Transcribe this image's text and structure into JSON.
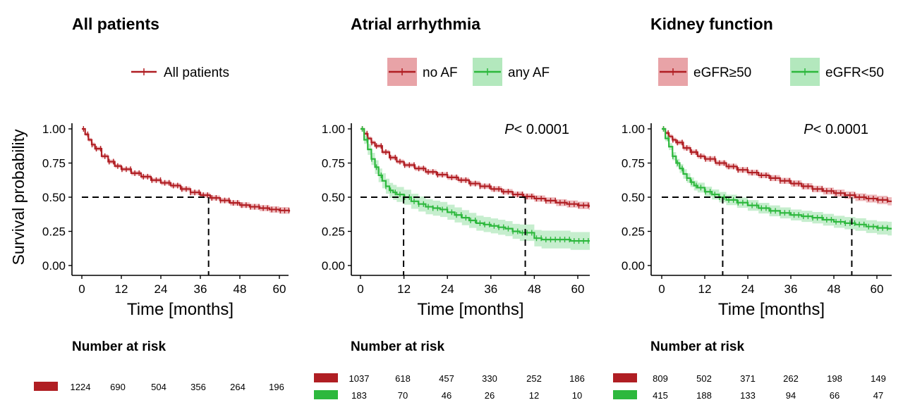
{
  "chart_data": [
    {
      "type": "line",
      "subtype": "kaplan-meier",
      "title": "All patients",
      "xlabel": "Time [months]",
      "ylabel": "Survival probability",
      "xlim": [
        0,
        63
      ],
      "ylim": [
        0,
        1
      ],
      "x_ticks": [
        "0",
        "12",
        "24",
        "36",
        "48",
        "60"
      ],
      "y_ticks": [
        "0.00",
        "0.25",
        "0.50",
        "0.75",
        "1.00"
      ],
      "p_value": null,
      "series": [
        {
          "name": "All patients",
          "color": "#b01e23",
          "fill": "#e8a3a7",
          "x": [
            0,
            1,
            2,
            3,
            4,
            6,
            8,
            10,
            12,
            15,
            18,
            21,
            24,
            27,
            30,
            33,
            36,
            39,
            42,
            45,
            48,
            51,
            54,
            57,
            60,
            63
          ],
          "y": [
            1.0,
            0.96,
            0.92,
            0.885,
            0.855,
            0.8,
            0.76,
            0.728,
            0.705,
            0.676,
            0.65,
            0.625,
            0.605,
            0.585,
            0.56,
            0.535,
            0.515,
            0.495,
            0.476,
            0.458,
            0.442,
            0.43,
            0.42,
            0.41,
            0.403,
            0.4
          ],
          "ci_width": [
            0,
            0.012,
            0.014,
            0.015,
            0.015,
            0.015,
            0.015,
            0.015,
            0.015,
            0.016,
            0.016,
            0.016,
            0.017,
            0.017,
            0.017,
            0.018,
            0.018,
            0.018,
            0.019,
            0.019,
            0.02,
            0.021,
            0.022,
            0.023,
            0.024,
            0.025
          ],
          "median": 38.5
        }
      ],
      "risk_table": {
        "title": "Number at risk",
        "rows": [
          {
            "name": "All patients",
            "color": "#b01e23",
            "values": [
              "1224",
              "690",
              "504",
              "356",
              "264",
              "196"
            ]
          }
        ]
      }
    },
    {
      "type": "line",
      "subtype": "kaplan-meier",
      "title": "Atrial arrhythmia",
      "xlabel": "Time [months]",
      "ylabel": "",
      "xlim": [
        0,
        63
      ],
      "ylim": [
        0,
        1
      ],
      "x_ticks": [
        "0",
        "12",
        "24",
        "36",
        "48",
        "60"
      ],
      "y_ticks": [
        "0.00",
        "0.25",
        "0.50",
        "0.75",
        "1.00"
      ],
      "p_value": {
        "label": "P",
        "text": "< 0.0001"
      },
      "series": [
        {
          "name": "no AF",
          "color": "#b01e23",
          "fill": "#e8a3a7",
          "x": [
            0,
            1,
            2,
            3,
            4,
            6,
            8,
            10,
            12,
            15,
            18,
            21,
            24,
            27,
            30,
            33,
            36,
            39,
            42,
            45,
            48,
            51,
            54,
            57,
            60,
            63
          ],
          "y": [
            1.0,
            0.965,
            0.93,
            0.9,
            0.875,
            0.83,
            0.79,
            0.76,
            0.735,
            0.71,
            0.685,
            0.665,
            0.645,
            0.625,
            0.6,
            0.58,
            0.56,
            0.54,
            0.52,
            0.505,
            0.49,
            0.475,
            0.46,
            0.45,
            0.44,
            0.435
          ],
          "ci_width": [
            0,
            0.012,
            0.014,
            0.015,
            0.015,
            0.016,
            0.016,
            0.016,
            0.016,
            0.017,
            0.017,
            0.018,
            0.018,
            0.018,
            0.019,
            0.019,
            0.02,
            0.02,
            0.021,
            0.022,
            0.023,
            0.024,
            0.025,
            0.026,
            0.027,
            0.028
          ],
          "median": 45.5
        },
        {
          "name": "any AF",
          "color": "#2db83d",
          "fill": "#b3e8bd",
          "x": [
            0,
            1,
            2,
            3,
            4,
            5,
            6,
            7,
            8,
            9,
            10,
            12,
            14,
            16,
            18,
            20,
            22,
            24,
            26,
            28,
            30,
            32,
            34,
            36,
            38,
            40,
            42,
            44,
            46,
            48,
            50,
            54,
            58,
            63
          ],
          "y": [
            1.0,
            0.92,
            0.85,
            0.78,
            0.72,
            0.66,
            0.62,
            0.58,
            0.55,
            0.535,
            0.52,
            0.5,
            0.47,
            0.45,
            0.43,
            0.42,
            0.41,
            0.39,
            0.37,
            0.35,
            0.33,
            0.31,
            0.3,
            0.29,
            0.28,
            0.27,
            0.25,
            0.24,
            0.24,
            0.2,
            0.19,
            0.19,
            0.18,
            0.18
          ],
          "ci_width": [
            0,
            0.03,
            0.04,
            0.045,
            0.05,
            0.05,
            0.055,
            0.055,
            0.055,
            0.055,
            0.055,
            0.055,
            0.055,
            0.055,
            0.055,
            0.055,
            0.055,
            0.055,
            0.055,
            0.055,
            0.055,
            0.055,
            0.055,
            0.055,
            0.055,
            0.055,
            0.055,
            0.06,
            0.06,
            0.06,
            0.065,
            0.065,
            0.065,
            0.065
          ],
          "median": 11.9
        }
      ],
      "risk_table": {
        "title": "Number at risk",
        "rows": [
          {
            "name": "no AF",
            "color": "#b01e23",
            "values": [
              "1037",
              "618",
              "457",
              "330",
              "252",
              "186"
            ]
          },
          {
            "name": "any AF",
            "color": "#2db83d",
            "values": [
              "183",
              "70",
              "46",
              "26",
              "12",
              "10"
            ]
          }
        ]
      }
    },
    {
      "type": "line",
      "subtype": "kaplan-meier",
      "title": "Kidney function",
      "xlabel": "Time [months]",
      "ylabel": "",
      "xlim": [
        0,
        63
      ],
      "ylim": [
        0,
        1
      ],
      "x_ticks": [
        "0",
        "12",
        "24",
        "36",
        "48",
        "60"
      ],
      "y_ticks": [
        "0.00",
        "0.25",
        "0.50",
        "0.75",
        "1.00"
      ],
      "p_value": {
        "label": "P",
        "text": "< 0.0001"
      },
      "series": [
        {
          "name": "eGFR≥50",
          "color": "#b01e23",
          "fill": "#e8a3a7",
          "x": [
            0,
            1,
            2,
            3,
            4,
            6,
            8,
            10,
            12,
            15,
            18,
            21,
            24,
            27,
            30,
            33,
            36,
            39,
            42,
            45,
            48,
            51,
            54,
            57,
            60,
            63
          ],
          "y": [
            1.0,
            0.97,
            0.945,
            0.92,
            0.9,
            0.86,
            0.83,
            0.8,
            0.78,
            0.75,
            0.725,
            0.7,
            0.68,
            0.66,
            0.64,
            0.62,
            0.6,
            0.58,
            0.56,
            0.545,
            0.53,
            0.515,
            0.5,
            0.49,
            0.48,
            0.47
          ],
          "ci_width": [
            0,
            0.013,
            0.015,
            0.016,
            0.017,
            0.018,
            0.018,
            0.018,
            0.019,
            0.019,
            0.02,
            0.02,
            0.021,
            0.021,
            0.022,
            0.022,
            0.023,
            0.023,
            0.024,
            0.025,
            0.026,
            0.027,
            0.028,
            0.029,
            0.03,
            0.03
          ],
          "median": 53.0
        },
        {
          "name": "eGFR<50",
          "color": "#2db83d",
          "fill": "#b3e8bd",
          "x": [
            0,
            1,
            2,
            3,
            4,
            5,
            6,
            7,
            8,
            9,
            10,
            12,
            14,
            16,
            18,
            21,
            24,
            27,
            30,
            33,
            36,
            39,
            42,
            45,
            48,
            51,
            54,
            57,
            60,
            63
          ],
          "y": [
            1.0,
            0.93,
            0.87,
            0.8,
            0.75,
            0.71,
            0.67,
            0.64,
            0.61,
            0.585,
            0.57,
            0.54,
            0.52,
            0.5,
            0.48,
            0.46,
            0.44,
            0.42,
            0.4,
            0.385,
            0.37,
            0.36,
            0.35,
            0.335,
            0.32,
            0.31,
            0.3,
            0.285,
            0.275,
            0.27
          ],
          "ci_width": [
            0,
            0.02,
            0.025,
            0.03,
            0.03,
            0.033,
            0.035,
            0.035,
            0.035,
            0.036,
            0.036,
            0.037,
            0.037,
            0.038,
            0.038,
            0.038,
            0.039,
            0.039,
            0.04,
            0.04,
            0.04,
            0.041,
            0.042,
            0.043,
            0.044,
            0.045,
            0.046,
            0.047,
            0.048,
            0.05
          ],
          "median": 17.0
        }
      ],
      "risk_table": {
        "title": "Number at risk",
        "rows": [
          {
            "name": "eGFR≥50",
            "color": "#b01e23",
            "values": [
              "809",
              "502",
              "371",
              "262",
              "198",
              "149"
            ]
          },
          {
            "name": "eGFR<50",
            "color": "#2db83d",
            "values": [
              "415",
              "188",
              "133",
              "94",
              "66",
              "47"
            ]
          }
        ]
      }
    }
  ]
}
